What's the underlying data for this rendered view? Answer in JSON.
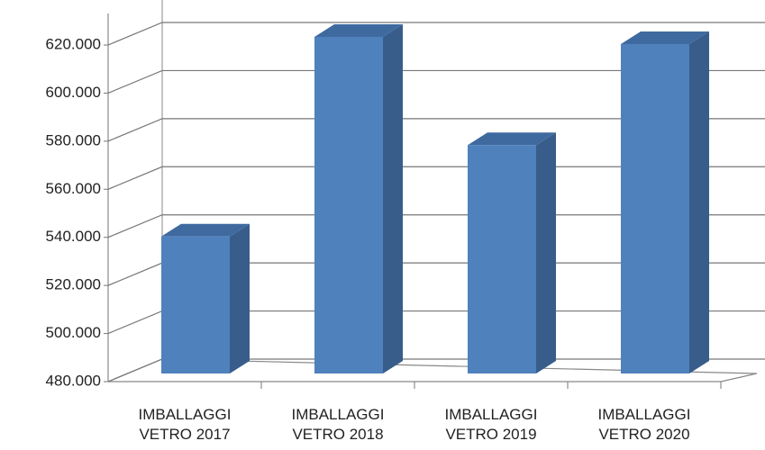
{
  "chart_data": {
    "type": "bar3d",
    "categories": [
      "IMBALLAGGI VETRO 2017",
      "IMBALLAGGI VETRO 2018",
      "IMBALLAGGI VETRO 2019",
      "IMBALLAGGI VETRO 2020"
    ],
    "values": [
      537000,
      620000,
      575000,
      617000
    ],
    "color": "#4f81bd",
    "ylim": [
      480000,
      620000
    ],
    "yticks": [
      {
        "value": 480000,
        "label": "480.000"
      },
      {
        "value": 500000,
        "label": "500.000"
      },
      {
        "value": 520000,
        "label": "520.000"
      },
      {
        "value": 540000,
        "label": "540.000"
      },
      {
        "value": 560000,
        "label": "560.000"
      },
      {
        "value": 580000,
        "label": "580.000"
      },
      {
        "value": 600000,
        "label": "600.000"
      },
      {
        "value": 620000,
        "label": "620.000"
      }
    ],
    "grid": true
  }
}
